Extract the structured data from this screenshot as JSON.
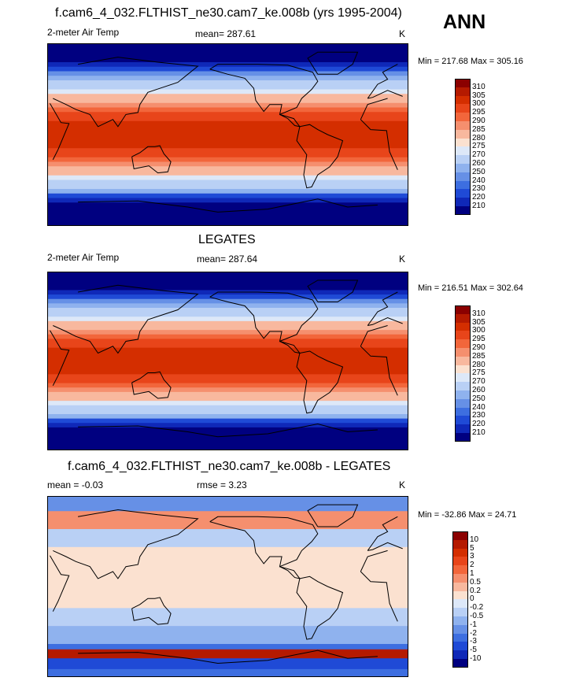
{
  "header": {
    "case_title": "f.cam6_4_032.FLTHIST_ne30.cam7_ke.008b (yrs 1995-2004)",
    "season": "ANN"
  },
  "panels": [
    {
      "id": "model",
      "title": "",
      "left_label": "2-meter Air Temp",
      "center_label": "mean= 287.61",
      "units": "K",
      "minmax": "Min = 217.68 Max = 305.16",
      "field": "abs"
    },
    {
      "id": "obs",
      "title": "LEGATES",
      "left_label": "2-meter Air Temp",
      "center_label": "mean= 287.64",
      "units": "K",
      "minmax": "Min = 216.51 Max = 302.64",
      "field": "abs"
    },
    {
      "id": "diff",
      "title": "f.cam6_4_032.FLTHIST_ne30.cam7_ke.008b - LEGATES",
      "left_label": "mean =  -0.03",
      "center_label": "rmse =   3.23",
      "units": "K",
      "minmax": "Min = -32.86 Max =  24.71",
      "field": "diff"
    }
  ],
  "colorbars": {
    "abs": {
      "levels": [
        "310",
        "305",
        "300",
        "295",
        "290",
        "285",
        "280",
        "275",
        "270",
        "260",
        "250",
        "240",
        "230",
        "220",
        "210"
      ],
      "colors": [
        "#8b0000",
        "#b51a00",
        "#d42e00",
        "#e8451a",
        "#f2663b",
        "#f58f6e",
        "#f8b89e",
        "#fbe1d0",
        "#dde8f8",
        "#b9d0f5",
        "#8fb2ee",
        "#6690e6",
        "#3d6ee0",
        "#1f4ad6",
        "#0f28b8",
        "#000080"
      ]
    },
    "diff": {
      "levels": [
        "10",
        "5",
        "3",
        "2",
        "1",
        "0.5",
        "0.2",
        "0",
        "-0.2",
        "-0.5",
        "-1",
        "-2",
        "-3",
        "-5",
        "-10"
      ],
      "colors": [
        "#8b0000",
        "#b51a00",
        "#d42e00",
        "#e8451a",
        "#f2663b",
        "#f58f6e",
        "#f8b89e",
        "#fbe1d0",
        "#dde8f8",
        "#b9d0f5",
        "#8fb2ee",
        "#6690e6",
        "#3d6ee0",
        "#1f4ad6",
        "#0f28b8",
        "#000080"
      ]
    }
  }
}
